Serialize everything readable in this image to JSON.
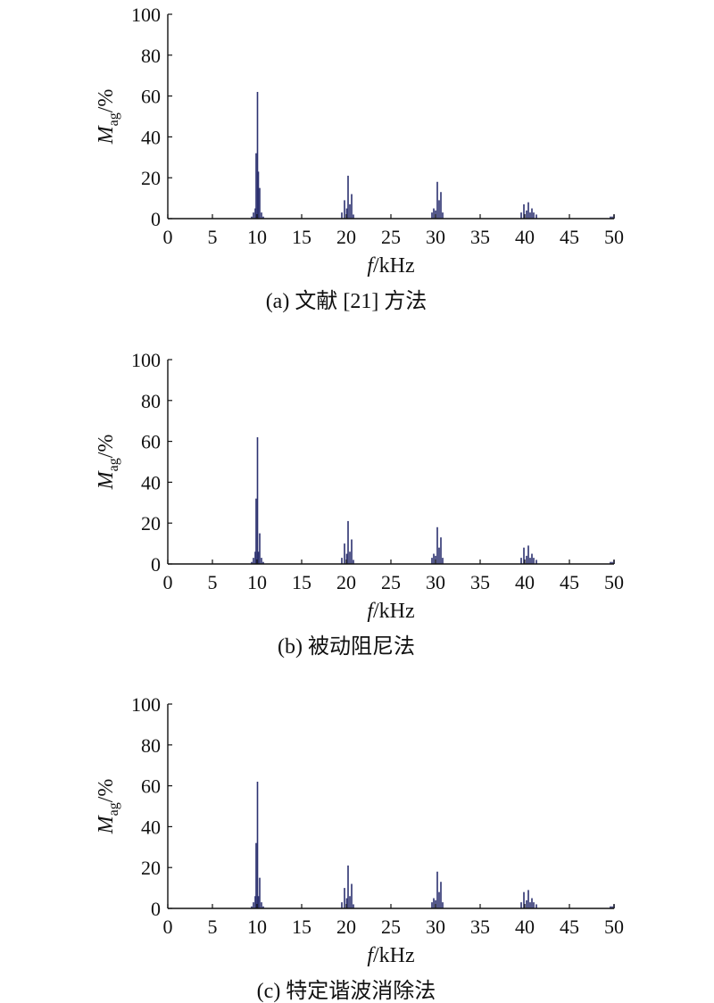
{
  "chart_data": [
    {
      "type": "bar",
      "caption": "(a) 文献 [21] 方法",
      "xlabel": {
        "var": "f",
        "unit": "/kHz"
      },
      "ylabel": {
        "var": "M",
        "sub": "ag",
        "unit": "/%"
      },
      "xlim": [
        0,
        50
      ],
      "ylim": [
        0,
        100
      ],
      "xticks": [
        0,
        5,
        10,
        15,
        20,
        25,
        30,
        35,
        40,
        45,
        50
      ],
      "yticks": [
        0,
        20,
        40,
        60,
        80,
        100
      ],
      "grid": false,
      "bar_color": "#2c3170",
      "x": [
        9.4,
        9.6,
        9.8,
        9.9,
        10.05,
        10.15,
        10.3,
        10.5,
        10.7,
        19.5,
        19.8,
        20.05,
        20.2,
        20.4,
        20.6,
        20.8,
        29.6,
        29.8,
        30.0,
        30.2,
        30.4,
        30.6,
        30.8,
        39.6,
        39.9,
        40.2,
        40.4,
        40.6,
        40.8,
        41.0,
        41.3,
        49.6,
        49.8,
        50.0
      ],
      "values": [
        1,
        3,
        5,
        32,
        62,
        23,
        15,
        3,
        1,
        3,
        9,
        5,
        21,
        7,
        12,
        2,
        3,
        5,
        4,
        18,
        9,
        13,
        3,
        3,
        7,
        4,
        8,
        3,
        5,
        3,
        2,
        1,
        1,
        2
      ]
    },
    {
      "type": "bar",
      "caption": "(b) 被动阻尼法",
      "xlabel": {
        "var": "f",
        "unit": "/kHz"
      },
      "ylabel": {
        "var": "M",
        "sub": "ag",
        "unit": "/%"
      },
      "xlim": [
        0,
        50
      ],
      "ylim": [
        0,
        100
      ],
      "xticks": [
        0,
        5,
        10,
        15,
        20,
        25,
        30,
        35,
        40,
        45,
        50
      ],
      "yticks": [
        0,
        20,
        40,
        60,
        80,
        100
      ],
      "grid": false,
      "bar_color": "#2c3170",
      "x": [
        9.4,
        9.6,
        9.8,
        9.9,
        10.05,
        10.15,
        10.3,
        10.5,
        10.7,
        19.5,
        19.8,
        20.05,
        20.2,
        20.4,
        20.6,
        20.8,
        29.6,
        29.8,
        30.0,
        30.2,
        30.4,
        30.6,
        30.8,
        39.6,
        39.9,
        40.2,
        40.4,
        40.6,
        40.8,
        41.0,
        41.3,
        49.6,
        49.8,
        50.0
      ],
      "values": [
        1,
        3,
        6,
        32,
        62,
        6,
        15,
        3,
        1,
        3,
        10,
        5,
        21,
        6,
        12,
        2,
        3,
        5,
        4,
        18,
        8,
        13,
        3,
        3,
        8,
        4,
        9,
        3,
        5,
        3,
        2,
        1,
        1,
        2
      ]
    },
    {
      "type": "bar",
      "caption": "(c) 特定谐波消除法",
      "xlabel": {
        "var": "f",
        "unit": "/kHz"
      },
      "ylabel": {
        "var": "M",
        "sub": "ag",
        "unit": "/%"
      },
      "xlim": [
        0,
        50
      ],
      "ylim": [
        0,
        100
      ],
      "xticks": [
        0,
        5,
        10,
        15,
        20,
        25,
        30,
        35,
        40,
        45,
        50
      ],
      "yticks": [
        0,
        20,
        40,
        60,
        80,
        100
      ],
      "grid": false,
      "bar_color": "#2c3170",
      "x": [
        9.4,
        9.6,
        9.8,
        9.9,
        10.05,
        10.15,
        10.3,
        10.5,
        10.7,
        19.5,
        19.8,
        20.05,
        20.2,
        20.4,
        20.6,
        20.8,
        29.6,
        29.8,
        30.0,
        30.2,
        30.4,
        30.6,
        30.8,
        39.6,
        39.9,
        40.2,
        40.4,
        40.6,
        40.8,
        41.0,
        41.3,
        49.6,
        49.8,
        50.0
      ],
      "values": [
        1,
        3,
        6,
        32,
        62,
        6,
        15,
        3,
        1,
        3,
        10,
        5,
        21,
        6,
        12,
        2,
        3,
        5,
        4,
        18,
        8,
        13,
        3,
        3,
        8,
        4,
        9,
        3,
        5,
        3,
        2,
        1,
        1,
        2
      ]
    }
  ]
}
